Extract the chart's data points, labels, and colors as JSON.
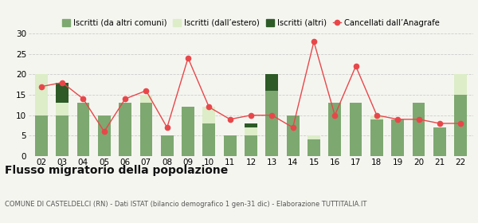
{
  "years": [
    "02",
    "03",
    "04",
    "05",
    "06",
    "07",
    "08",
    "09",
    "10",
    "11",
    "12",
    "13",
    "14",
    "15",
    "16",
    "17",
    "18",
    "19",
    "20",
    "21",
    "22"
  ],
  "iscritti_altri_comuni": [
    10,
    10,
    13,
    10,
    13,
    13,
    5,
    12,
    8,
    5,
    5,
    16,
    10,
    4,
    13,
    13,
    9,
    9,
    13,
    7,
    15
  ],
  "iscritti_estero": [
    10,
    3,
    0,
    0,
    0,
    2,
    0,
    0,
    4,
    0,
    2,
    0,
    0,
    1,
    0,
    0,
    1,
    0,
    0,
    0,
    5
  ],
  "iscritti_altri": [
    0,
    5,
    0,
    0,
    0,
    0,
    0,
    0,
    0,
    0,
    1,
    4,
    0,
    0,
    0,
    0,
    0,
    0,
    0,
    0,
    0
  ],
  "cancellati": [
    17,
    18,
    14,
    6,
    14,
    16,
    7,
    24,
    12,
    9,
    10,
    10,
    7,
    28,
    10,
    22,
    10,
    9,
    9,
    8,
    8
  ],
  "color_altri_comuni": "#7da870",
  "color_estero": "#dcedc8",
  "color_altri": "#2d5a27",
  "color_cancellati": "#e8474a",
  "color_bg": "#f5f5f0",
  "color_grid": "#cccccc",
  "ylim": [
    0,
    30
  ],
  "yticks": [
    0,
    5,
    10,
    15,
    20,
    25,
    30
  ],
  "title": "Flusso migratorio della popolazione",
  "subtitle": "COMUNE DI CASTELDELCI (RN) - Dati ISTAT (bilancio demografico 1 gen-31 dic) - Elaborazione TUTTITALIA.IT",
  "legend_labels": [
    "Iscritti (da altri comuni)",
    "Iscritti (dall’estero)",
    "Iscritti (altri)",
    "Cancellati dall’Anagrafe"
  ]
}
